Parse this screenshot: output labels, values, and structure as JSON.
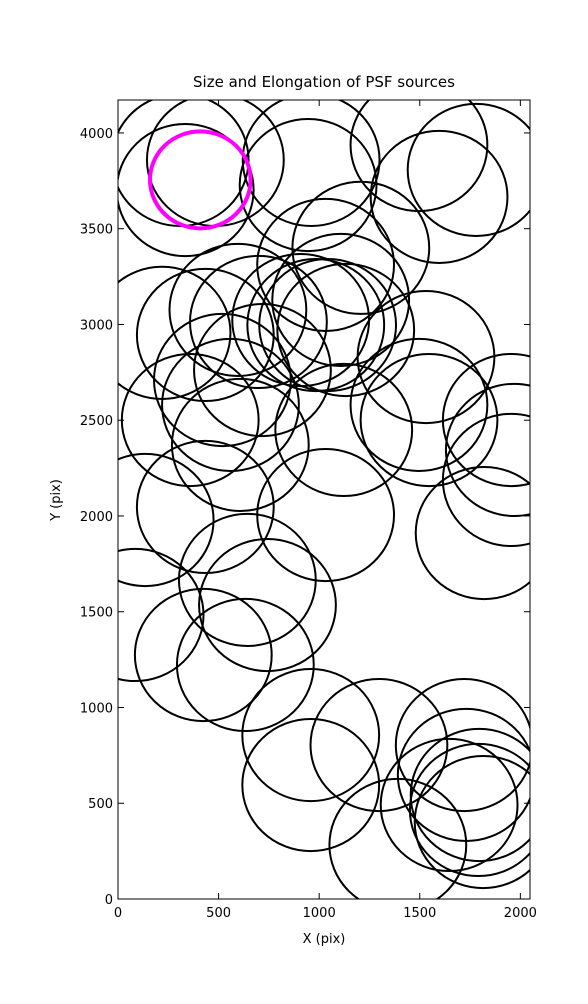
{
  "chart_data": {
    "type": "ellipse",
    "title": "Size and Elongation of PSF sources",
    "xlabel": "X (pix)",
    "ylabel": "Y (pix)",
    "xlim": [
      0,
      2048
    ],
    "ylim": [
      0,
      4172
    ],
    "xticks": [
      0,
      500,
      1000,
      1500,
      2000
    ],
    "yticks": [
      0,
      500,
      1000,
      1500,
      2000,
      2500,
      3000,
      3500,
      4000
    ],
    "series": [
      {
        "color": "#000000",
        "x": [
          309,
          484,
          334,
          945,
          960,
          1496,
          1780,
          1596,
          1207,
          1032,
          1107,
          596,
          698,
          434,
          219,
          983,
          908,
          1132,
          1042,
          1531,
          1496,
          1546,
          718,
          519,
          359,
          559,
          608,
          1122,
          1955,
          1970,
          1955,
          135,
          434,
          1032,
          1820,
          643,
          743,
          85,
          424,
          633,
          958,
          1297,
          958,
          1391,
          1721,
          1731,
          1646,
          1791,
          1815,
          1795
        ],
        "y": [
          3859,
          3859,
          3702,
          3728,
          3859,
          3937,
          3807,
          3666,
          3400,
          3311,
          3128,
          3076,
          3013,
          2945,
          2956,
          2997,
          3023,
          2971,
          2997,
          2830,
          2580,
          2501,
          2762,
          2710,
          2501,
          2580,
          2371,
          2449,
          2501,
          2345,
          2188,
          1979,
          2047,
          2005,
          1911,
          1666,
          1535,
          1483,
          1274,
          1222,
          856,
          804,
          595,
          282,
          804,
          648,
          491,
          465,
          402,
          543
        ],
        "widths": [
          680,
          680,
          680,
          680,
          680,
          680,
          680,
          680,
          680,
          680,
          680,
          680,
          680,
          680,
          680,
          680,
          680,
          680,
          680,
          680,
          680,
          680,
          680,
          680,
          680,
          680,
          680,
          680,
          680,
          680,
          680,
          680,
          680,
          680,
          680,
          680,
          680,
          680,
          680,
          680,
          680,
          680,
          680,
          680,
          680,
          680,
          680,
          680,
          680,
          680
        ],
        "heights": [
          690,
          690,
          690,
          690,
          690,
          690,
          690,
          690,
          690,
          690,
          690,
          690,
          690,
          690,
          690,
          690,
          690,
          690,
          690,
          690,
          690,
          690,
          690,
          690,
          690,
          690,
          690,
          690,
          690,
          690,
          690,
          690,
          690,
          690,
          690,
          690,
          690,
          690,
          690,
          690,
          690,
          690,
          690,
          690,
          690,
          690,
          690,
          690,
          690,
          690
        ]
      },
      {
        "color": "#ff00ff",
        "x": [
          409
        ],
        "y": [
          3755
        ],
        "widths": [
          500
        ],
        "heights": [
          506
        ]
      }
    ]
  }
}
